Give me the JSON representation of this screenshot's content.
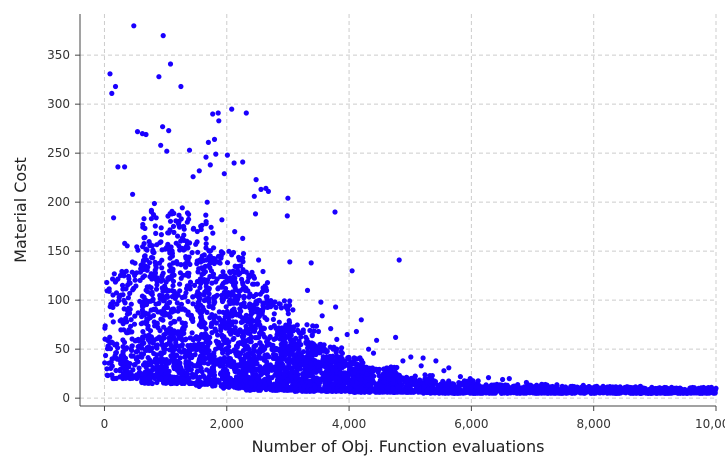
{
  "chart_data": {
    "type": "scatter",
    "title": "",
    "xlabel": "Number of Obj. Function evaluations",
    "ylabel": "Material Cost",
    "xlim": [
      -400,
      10000
    ],
    "ylim": [
      -8,
      392
    ],
    "xticks": [
      0,
      2000,
      4000,
      6000,
      8000,
      10000
    ],
    "xtick_labels": [
      "0",
      "2,000",
      "4,000",
      "6,000",
      "8,000",
      "10,000"
    ],
    "yticks": [
      0,
      50,
      100,
      150,
      200,
      250,
      300,
      350
    ],
    "ytick_labels": [
      "0",
      "50",
      "100",
      "150",
      "200",
      "250",
      "300",
      "350"
    ],
    "grid": true,
    "legend": "none",
    "marker_color": "#1a00ff",
    "series": [
      {
        "points": [
          [
            480,
            380
          ],
          [
            960,
            370
          ],
          [
            1080,
            341
          ],
          [
            90,
            331
          ],
          [
            890,
            328
          ],
          [
            120,
            311
          ],
          [
            180,
            318
          ],
          [
            1250,
            318
          ],
          [
            2080,
            295
          ],
          [
            2320,
            291
          ],
          [
            1770,
            290
          ],
          [
            1860,
            291
          ],
          [
            1870,
            283
          ],
          [
            950,
            277
          ],
          [
            1050,
            273
          ],
          [
            540,
            272
          ],
          [
            620,
            270
          ],
          [
            680,
            269
          ],
          [
            1800,
            264
          ],
          [
            1700,
            261
          ],
          [
            920,
            258
          ],
          [
            1020,
            252
          ],
          [
            1390,
            253
          ],
          [
            1820,
            249
          ],
          [
            1660,
            246
          ],
          [
            2010,
            248
          ],
          [
            2120,
            240
          ],
          [
            2260,
            241
          ],
          [
            1730,
            238
          ],
          [
            220,
            236
          ],
          [
            330,
            236
          ],
          [
            1550,
            232
          ],
          [
            1960,
            229
          ],
          [
            1450,
            226
          ],
          [
            2480,
            223
          ],
          [
            2640,
            214
          ],
          [
            2560,
            213
          ],
          [
            2680,
            211
          ],
          [
            2450,
            206
          ],
          [
            3000,
            204
          ],
          [
            460,
            208
          ],
          [
            1680,
            200
          ],
          [
            150,
            184
          ],
          [
            2470,
            188
          ],
          [
            3770,
            190
          ],
          [
            2990,
            186
          ],
          [
            1920,
            182
          ],
          [
            2130,
            170
          ],
          [
            2260,
            163
          ],
          [
            2520,
            141
          ],
          [
            3030,
            139
          ],
          [
            3380,
            138
          ],
          [
            4050,
            130
          ],
          [
            4820,
            141
          ],
          [
            3320,
            110
          ],
          [
            3540,
            98
          ],
          [
            3780,
            93
          ],
          [
            3560,
            84
          ],
          [
            4200,
            80
          ],
          [
            3700,
            71
          ],
          [
            4120,
            68
          ],
          [
            3970,
            65
          ],
          [
            3800,
            60
          ],
          [
            4450,
            59
          ],
          [
            4760,
            62
          ],
          [
            4320,
            50
          ],
          [
            4400,
            46
          ],
          [
            5010,
            42
          ],
          [
            5210,
            41
          ],
          [
            5420,
            38
          ],
          [
            4880,
            38
          ],
          [
            5180,
            33
          ],
          [
            5630,
            31
          ],
          [
            5550,
            28
          ],
          [
            5820,
            22
          ],
          [
            5980,
            20
          ],
          [
            6280,
            21
          ],
          [
            6510,
            19
          ],
          [
            6620,
            20
          ],
          [
            6900,
            16
          ],
          [
            7150,
            14
          ],
          [
            7400,
            13
          ],
          [
            7650,
            12
          ],
          [
            7830,
            13
          ],
          [
            8050,
            12
          ],
          [
            8300,
            11
          ],
          [
            8550,
            11
          ],
          [
            8780,
            10
          ],
          [
            9050,
            10
          ],
          [
            9320,
            10
          ],
          [
            9600,
            10
          ],
          [
            9850,
            10
          ],
          [
            10000,
            10
          ]
        ],
        "clusters": [
          {
            "x_range": [
              0,
              450
            ],
            "y_range": [
              20,
              130
            ],
            "count": 120
          },
          {
            "x_range": [
              300,
              1000
            ],
            "y_range": [
              20,
              160
            ],
            "count": 240
          },
          {
            "x_range": [
              600,
              1400
            ],
            "y_range": [
              15,
              200
            ],
            "count": 320
          },
          {
            "x_range": [
              1000,
              1800
            ],
            "y_range": [
              15,
              190
            ],
            "count": 330
          },
          {
            "x_range": [
              1500,
              2300
            ],
            "y_range": [
              12,
              150
            ],
            "count": 340
          },
          {
            "x_range": [
              1900,
              2700
            ],
            "y_range": [
              10,
              130
            ],
            "count": 320
          },
          {
            "x_range": [
              2300,
              3100
            ],
            "y_range": [
              8,
              100
            ],
            "count": 320
          },
          {
            "x_range": [
              2800,
              3500
            ],
            "y_range": [
              8,
              75
            ],
            "count": 300
          },
          {
            "x_range": [
              3100,
              3900
            ],
            "y_range": [
              7,
              55
            ],
            "count": 300
          },
          {
            "x_range": [
              3600,
              4300
            ],
            "y_range": [
              7,
              42
            ],
            "count": 270
          },
          {
            "x_range": [
              4000,
              4800
            ],
            "y_range": [
              6,
              32
            ],
            "count": 250
          },
          {
            "x_range": [
              4500,
              5400
            ],
            "y_range": [
              6,
              24
            ],
            "count": 240
          },
          {
            "x_range": [
              5200,
              6200
            ],
            "y_range": [
              5,
              18
            ],
            "count": 240
          },
          {
            "x_range": [
              6000,
              7400
            ],
            "y_range": [
              5,
              14
            ],
            "count": 270
          },
          {
            "x_range": [
              7200,
              8800
            ],
            "y_range": [
              5,
              12
            ],
            "count": 280
          },
          {
            "x_range": [
              8600,
              10000
            ],
            "y_range": [
              5,
              11
            ],
            "count": 300
          }
        ]
      }
    ]
  }
}
